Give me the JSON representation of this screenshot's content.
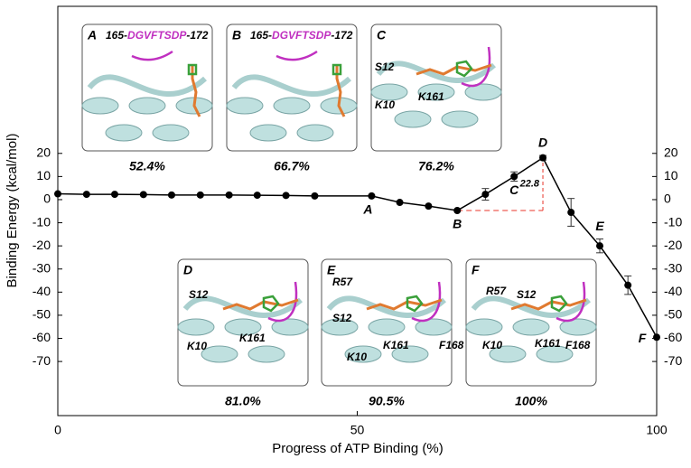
{
  "chart_data": {
    "type": "line",
    "xlabel": "Progress of ATP Binding (%)",
    "ylabel": "Binding Energy (kcal/mol)",
    "xlim": [
      0,
      100
    ],
    "xticks": [
      0,
      50,
      100
    ],
    "ylim": [
      -93.4,
      83.6
    ],
    "yticks": [
      -70,
      -60,
      -50,
      -40,
      -30,
      -20,
      -10,
      0,
      10,
      20
    ],
    "color": "#000000",
    "x": [
      0,
      4.8,
      9.5,
      14.3,
      19,
      23.8,
      28.6,
      33.3,
      38.1,
      42.9,
      52.4,
      57.1,
      61.9,
      66.7,
      71.4,
      76.2,
      81,
      85.7,
      90.5,
      95.2,
      100
    ],
    "values": [
      2.5,
      2.3,
      2.3,
      2.2,
      2,
      2,
      2,
      1.9,
      1.8,
      1.6,
      1.6,
      -1.2,
      -2.8,
      -4.7,
      2.3,
      10,
      18.1,
      -5.5,
      -20,
      -37,
      -59.5
    ],
    "errors": [
      0,
      0,
      0,
      0,
      0,
      0,
      0,
      0,
      0,
      0,
      0,
      0,
      0,
      0,
      2.5,
      2,
      1,
      6,
      3,
      4,
      0
    ],
    "point_labels": [
      null,
      null,
      null,
      null,
      null,
      null,
      null,
      null,
      null,
      null,
      "A",
      null,
      null,
      "B",
      null,
      "C",
      "D",
      null,
      "E",
      null,
      "F"
    ],
    "gap": 22.8,
    "gap_color": "#e8342a",
    "insets": [
      {
        "letter": "A",
        "peptide": [
          "165-",
          "DGVFTSDP",
          "-172"
        ],
        "residues": [],
        "caption": "52.4%"
      },
      {
        "letter": "B",
        "peptide": [
          "165-",
          "DGVFTSDP",
          "-172"
        ],
        "residues": [],
        "caption": "66.7%"
      },
      {
        "letter": "C",
        "peptide": [],
        "residues": [
          "S12",
          "K161",
          "K10"
        ],
        "caption": "76.2%"
      },
      {
        "letter": "D",
        "peptide": [],
        "residues": [
          "S12",
          "K10",
          "K161"
        ],
        "caption": "81.0%"
      },
      {
        "letter": "E",
        "peptide": [],
        "residues": [
          "R57",
          "S12",
          "K161",
          "F168",
          "K10"
        ],
        "caption": "90.5%"
      },
      {
        "letter": "F",
        "peptide": [],
        "residues": [
          "R57",
          "S12",
          "K10",
          "K161",
          "F168"
        ],
        "caption": "100%"
      }
    ]
  }
}
